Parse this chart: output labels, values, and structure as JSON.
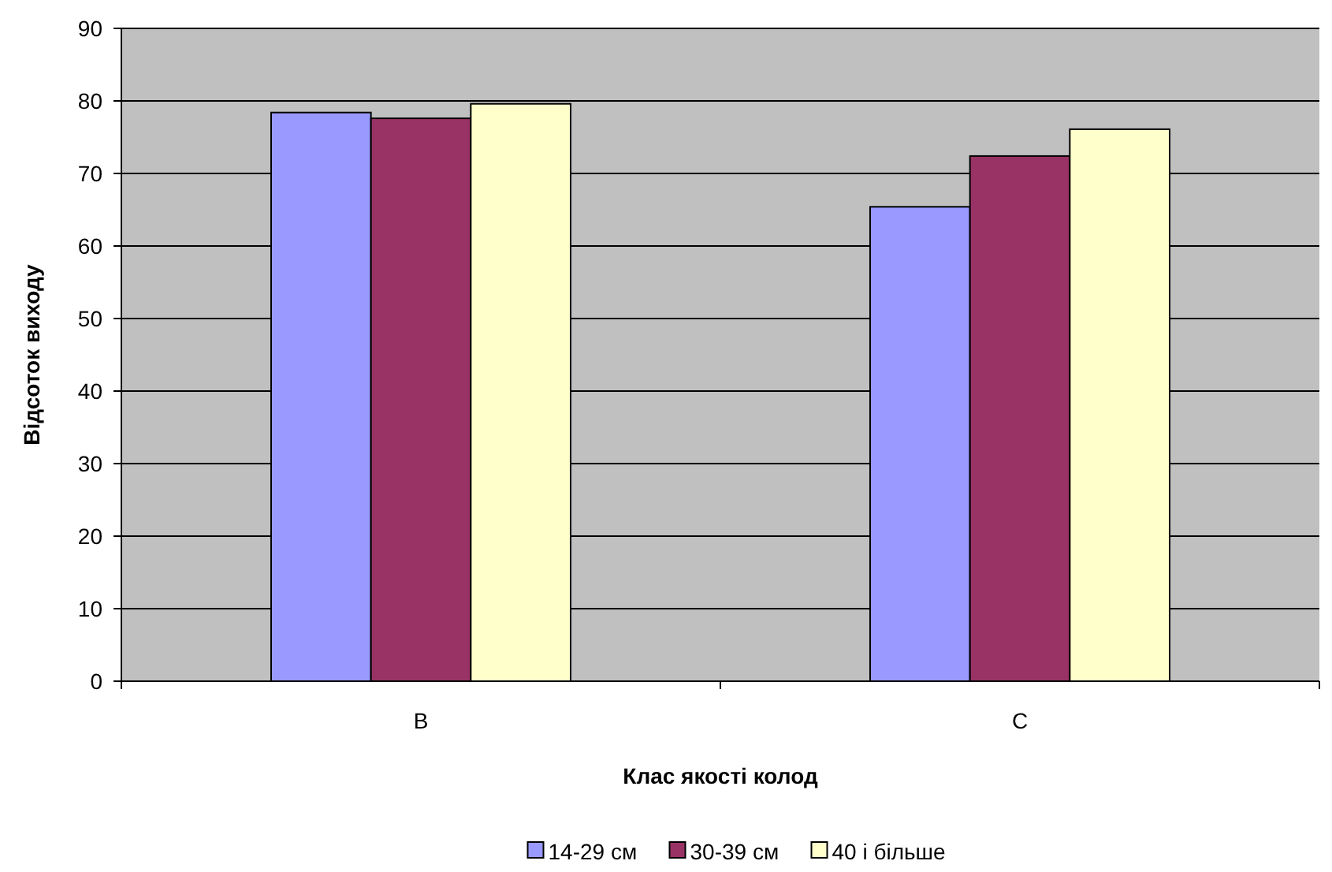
{
  "chart_data": {
    "type": "bar",
    "xlabel": "Клас якості колод",
    "ylabel": "Відсоток виходу",
    "categories": [
      "B",
      "C"
    ],
    "series": [
      {
        "name": "14-29 см",
        "color": "#9999ff",
        "values": [
          78.4,
          65.4
        ]
      },
      {
        "name": "30-39 см",
        "color": "#993366",
        "values": [
          77.6,
          72.4
        ]
      },
      {
        "name": "40 і більше",
        "color": "#ffffcc",
        "values": [
          79.6,
          76.1
        ]
      }
    ],
    "ylim": [
      0,
      90
    ],
    "yticks": [
      0,
      10,
      20,
      30,
      40,
      50,
      60,
      70,
      80,
      90
    ],
    "grid": "y",
    "legend": "bottom"
  }
}
